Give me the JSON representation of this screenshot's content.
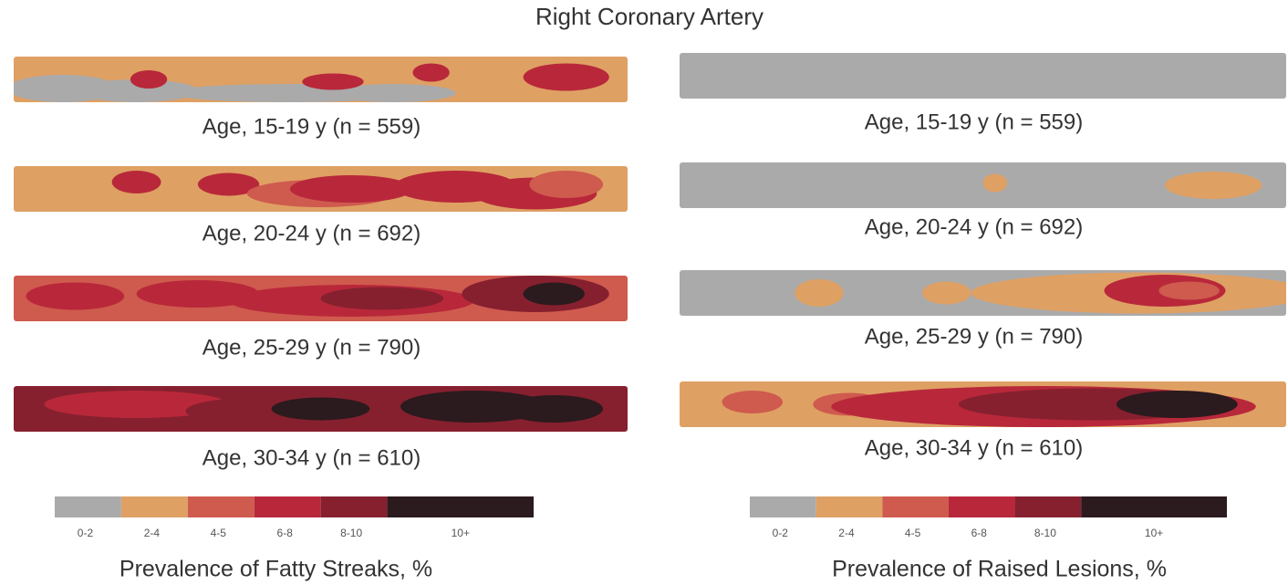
{
  "title": "Right Coronary Artery",
  "panels": [
    {
      "strips": [
        {
          "label": "Age, 15-19 y (n = 559)"
        },
        {
          "label": "Age, 20-24 y (n = 692)"
        },
        {
          "label": "Age, 25-29 y (n = 790)"
        },
        {
          "label": "Age, 30-34 y (n = 610)"
        }
      ],
      "legend": {
        "colors": [
          "#aaaaaa",
          "#dfa064",
          "#cf5a4e",
          "#b8283a",
          "#86202f",
          "#2b1a1e"
        ],
        "labels": [
          "0-2",
          "2-4",
          "4-5",
          "6-8",
          "8-10",
          "10+"
        ]
      },
      "caption": "Prevalence of Fatty Streaks, %"
    },
    {
      "strips": [
        {
          "label": "Age, 15-19 y (n = 559)"
        },
        {
          "label": "Age, 20-24 y (n = 692)"
        },
        {
          "label": "Age, 25-29 y (n = 790)"
        },
        {
          "label": "Age, 30-34 y (n = 610)"
        }
      ],
      "legend": {
        "colors": [
          "#aaaaaa",
          "#dfa064",
          "#cf5a4e",
          "#b8283a",
          "#86202f",
          "#2b1a1e"
        ],
        "labels": [
          "0-2",
          "2-4",
          "4-5",
          "6-8",
          "8-10",
          "10+"
        ]
      },
      "caption": "Prevalence of Raised Lesions, %"
    }
  ]
}
